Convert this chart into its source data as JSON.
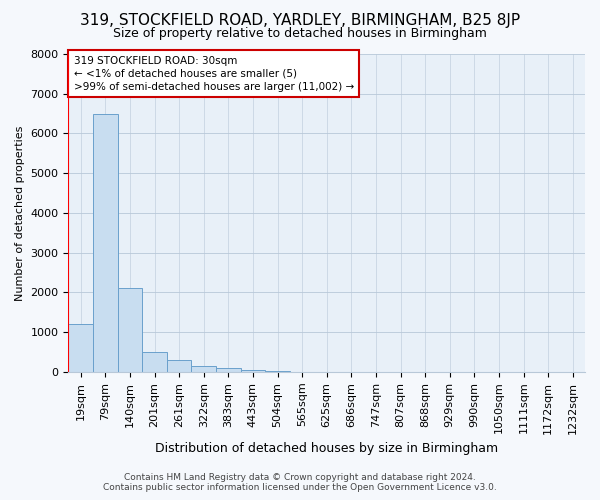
{
  "title": "319, STOCKFIELD ROAD, YARDLEY, BIRMINGHAM, B25 8JP",
  "subtitle": "Size of property relative to detached houses in Birmingham",
  "xlabel": "Distribution of detached houses by size in Birmingham",
  "ylabel": "Number of detached properties",
  "annotation_title": "319 STOCKFIELD ROAD: 30sqm",
  "annotation_line2": "← <1% of detached houses are smaller (5)",
  "annotation_line3": ">99% of semi-detached houses are larger (11,002) →",
  "footer_line1": "Contains HM Land Registry data © Crown copyright and database right 2024.",
  "footer_line2": "Contains public sector information licensed under the Open Government Licence v3.0.",
  "categories": [
    "19sqm",
    "79sqm",
    "140sqm",
    "201sqm",
    "261sqm",
    "322sqm",
    "383sqm",
    "443sqm",
    "504sqm",
    "565sqm",
    "625sqm",
    "686sqm",
    "747sqm",
    "807sqm",
    "868sqm",
    "929sqm",
    "990sqm",
    "1050sqm",
    "1111sqm",
    "1172sqm",
    "1232sqm"
  ],
  "values": [
    1200,
    6500,
    2100,
    500,
    300,
    150,
    100,
    60,
    30,
    10,
    5,
    3,
    2,
    2,
    1,
    1,
    1,
    1,
    1,
    1,
    1
  ],
  "bar_color": "#c8ddf0",
  "bar_edge_color": "#6aa0cc",
  "ylim": [
    0,
    8000
  ],
  "yticks": [
    0,
    1000,
    2000,
    3000,
    4000,
    5000,
    6000,
    7000,
    8000
  ],
  "annotation_box_facecolor": "#ffffff",
  "annotation_box_edgecolor": "#cc0000",
  "bg_color": "#f5f8fc",
  "plot_bg_color": "#e8f0f8",
  "grid_color": "#b8c8d8",
  "title_fontsize": 11,
  "subtitle_fontsize": 9,
  "ylabel_fontsize": 8,
  "xlabel_fontsize": 9,
  "tick_fontsize": 8,
  "annot_fontsize": 7.5,
  "footer_fontsize": 6.5
}
